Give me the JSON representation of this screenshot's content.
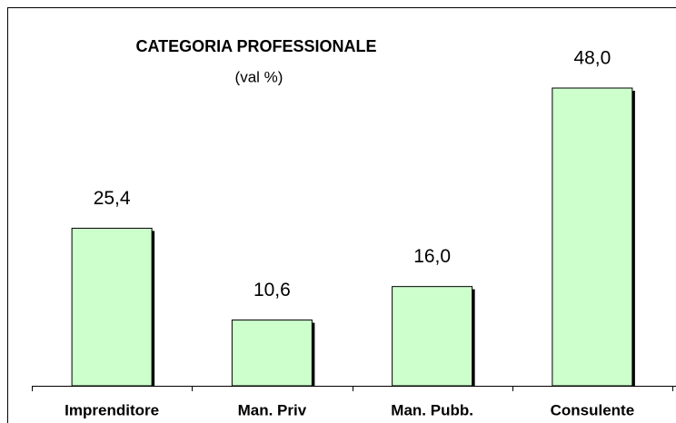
{
  "chart_data": {
    "type": "bar",
    "title": "CATEGORIA PROFESSIONALE",
    "subtitle": "(val %)",
    "categories": [
      "Imprenditore",
      "Man. Priv",
      "Man. Pubb.",
      "Consulente"
    ],
    "values": [
      25.4,
      10.6,
      16.0,
      48.0
    ],
    "value_labels": [
      "25,4",
      "10,6",
      "16,0",
      "48,0"
    ],
    "color": "#ccffcc",
    "ylim": [
      0,
      60
    ]
  }
}
